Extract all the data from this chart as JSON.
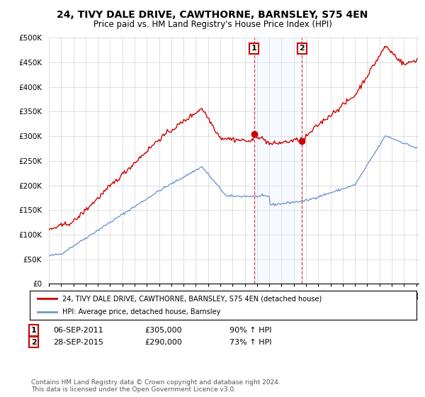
{
  "title": "24, TIVY DALE DRIVE, CAWTHORNE, BARNSLEY, S75 4EN",
  "subtitle": "Price paid vs. HM Land Registry's House Price Index (HPI)",
  "ylim": [
    0,
    500000
  ],
  "yticks": [
    0,
    50000,
    100000,
    150000,
    200000,
    250000,
    300000,
    350000,
    400000,
    450000,
    500000
  ],
  "ytick_labels": [
    "£0",
    "£50K",
    "£100K",
    "£150K",
    "£200K",
    "£250K",
    "£300K",
    "£350K",
    "£400K",
    "£450K",
    "£500K"
  ],
  "legend_line1": "24, TIVY DALE DRIVE, CAWTHORNE, BARNSLEY, S75 4EN (detached house)",
  "legend_line2": "HPI: Average price, detached house, Barnsley",
  "annotation1_label": "1",
  "annotation1_date": "06-SEP-2011",
  "annotation1_price": "£305,000",
  "annotation1_hpi": "90% ↑ HPI",
  "annotation2_label": "2",
  "annotation2_date": "28-SEP-2015",
  "annotation2_price": "£290,000",
  "annotation2_hpi": "73% ↑ HPI",
  "footer": "Contains HM Land Registry data © Crown copyright and database right 2024.\nThis data is licensed under the Open Government Licence v3.0.",
  "red_color": "#cc0000",
  "blue_color": "#7799cc",
  "vline_color": "#dd4444",
  "shading_color": "#ddeeff",
  "sale1_year": 2011.75,
  "sale2_year": 2015.67,
  "sale1_price": 305000,
  "sale2_price": 290000
}
